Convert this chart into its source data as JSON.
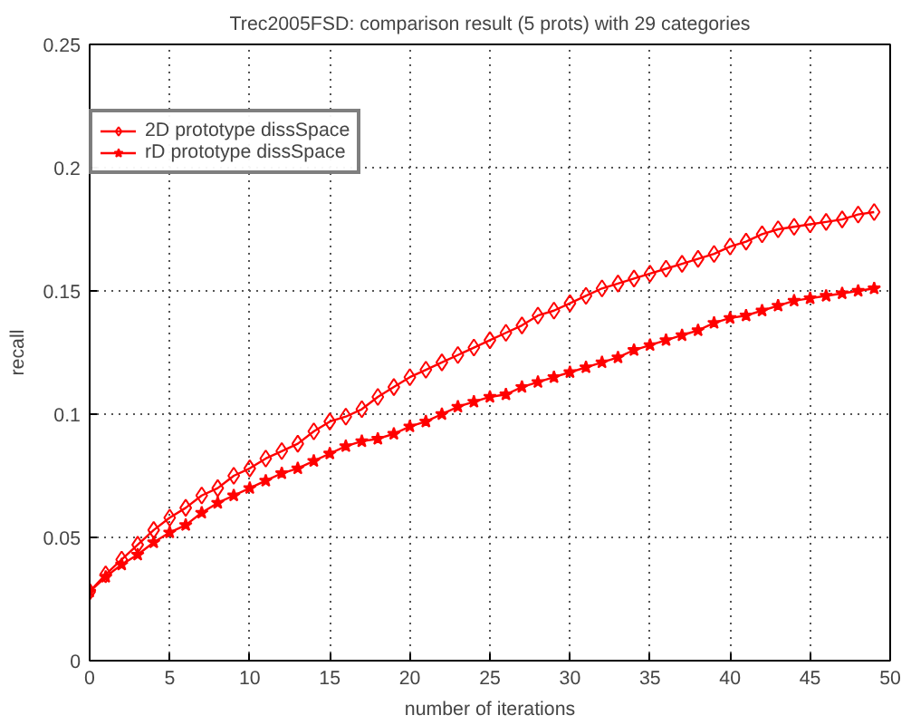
{
  "chart_data": {
    "type": "line",
    "title": "Trec2005FSD: comparison result (5 prots) with 29 categories",
    "xlabel": "number of iterations",
    "ylabel": "recall",
    "x": [
      0,
      1,
      2,
      3,
      4,
      5,
      6,
      7,
      8,
      9,
      10,
      11,
      12,
      13,
      14,
      15,
      16,
      17,
      18,
      19,
      20,
      21,
      22,
      23,
      24,
      25,
      26,
      27,
      28,
      29,
      30,
      31,
      32,
      33,
      34,
      35,
      36,
      37,
      38,
      39,
      40,
      41,
      42,
      43,
      44,
      45,
      46,
      47,
      48,
      49
    ],
    "series": [
      {
        "name": "2D prototype dissSpace",
        "color": "#ff0000",
        "marker": "diamond",
        "values": [
          0.028,
          0.035,
          0.041,
          0.047,
          0.053,
          0.058,
          0.062,
          0.067,
          0.07,
          0.075,
          0.078,
          0.082,
          0.085,
          0.088,
          0.093,
          0.097,
          0.099,
          0.102,
          0.107,
          0.111,
          0.115,
          0.118,
          0.121,
          0.124,
          0.127,
          0.13,
          0.133,
          0.136,
          0.14,
          0.142,
          0.145,
          0.148,
          0.151,
          0.153,
          0.155,
          0.157,
          0.159,
          0.161,
          0.163,
          0.165,
          0.168,
          0.17,
          0.173,
          0.175,
          0.176,
          0.177,
          0.178,
          0.179,
          0.181,
          0.182
        ]
      },
      {
        "name": "rD prototype dissSpace",
        "color": "#ff0000",
        "marker": "star",
        "values": [
          0.028,
          0.034,
          0.039,
          0.043,
          0.048,
          0.052,
          0.055,
          0.06,
          0.064,
          0.067,
          0.07,
          0.073,
          0.076,
          0.078,
          0.081,
          0.084,
          0.087,
          0.089,
          0.09,
          0.092,
          0.095,
          0.097,
          0.1,
          0.103,
          0.105,
          0.107,
          0.108,
          0.111,
          0.113,
          0.115,
          0.117,
          0.119,
          0.121,
          0.123,
          0.126,
          0.128,
          0.13,
          0.132,
          0.134,
          0.137,
          0.139,
          0.14,
          0.142,
          0.144,
          0.146,
          0.147,
          0.148,
          0.149,
          0.15,
          0.151
        ]
      }
    ],
    "xlim": [
      0,
      50
    ],
    "xticks": [
      0,
      5,
      10,
      15,
      20,
      25,
      30,
      35,
      40,
      45,
      50
    ],
    "ylim": [
      0,
      0.25
    ],
    "yticks": [
      0,
      0.05,
      0.1,
      0.15,
      0.2,
      0.25
    ],
    "grid": true,
    "legend": "top left",
    "line_style": "solid"
  }
}
